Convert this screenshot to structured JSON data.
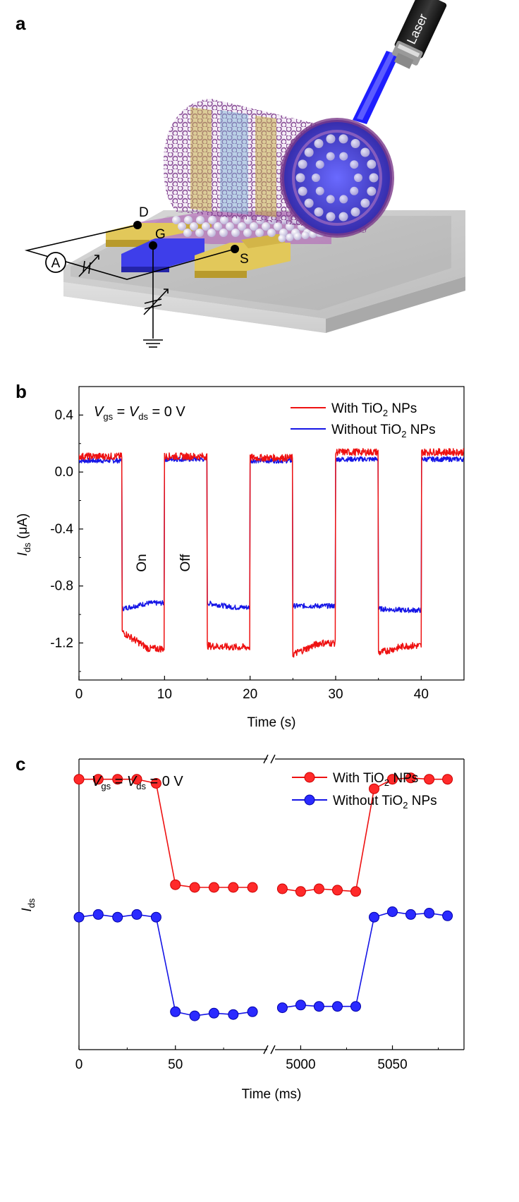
{
  "panels": {
    "a": "a",
    "b": "b",
    "c": "c"
  },
  "diagram": {
    "laser_label": "Laser",
    "drain_label": "D",
    "gate_label": "G",
    "source_label": "S",
    "ammeter_label": "A"
  },
  "colors": {
    "with_tio2": "#ee1111",
    "without_tio2": "#1515e6",
    "with_tio2_marker": "#ff2a2a",
    "without_tio2_marker": "#2a2aff",
    "gold": "#d4b83c",
    "gate_blue": "#3a3ae0",
    "laser_beam": "#2424ff",
    "tube_purple": "#8a3a96"
  },
  "chart_data": [
    {
      "panel": "b",
      "type": "line",
      "annotation": "V_gs = V_ds = 0 V",
      "xlabel": "Time (s)",
      "ylabel": "I_ds (μA)",
      "xlim": [
        0,
        45
      ],
      "ylim": [
        -1.46,
        0.6
      ],
      "x_ticks": [
        0,
        10,
        20,
        30,
        40
      ],
      "y_ticks": [
        0.4,
        0.0,
        -0.4,
        -0.8,
        -1.2
      ],
      "y_tick_labels": [
        "0.4",
        "0.0",
        "-0.4",
        "-0.8",
        "-1.2"
      ],
      "state_labels": [
        "On",
        "Off"
      ],
      "legend_position": "top-right",
      "switch_times_s": [
        5,
        10,
        15,
        20,
        25,
        30,
        35,
        40
      ],
      "series": [
        {
          "name": "With TiO2 NPs",
          "color": "#ee1111",
          "off_level": [
            0.11,
            0.11,
            0.1,
            0.14,
            0.14
          ],
          "on_start": [
            -1.12,
            -1.22,
            -1.28,
            -1.27
          ],
          "on_end": [
            -1.24,
            -1.23,
            -1.2,
            -1.22
          ]
        },
        {
          "name": "Without TiO2 NPs",
          "color": "#1515e6",
          "off_level": [
            0.08,
            0.09,
            0.08,
            0.09,
            0.09
          ],
          "on_start": [
            -0.96,
            -0.92,
            -0.94,
            -0.96
          ],
          "on_end": [
            -0.92,
            -0.95,
            -0.94,
            -0.97
          ]
        }
      ]
    },
    {
      "panel": "c",
      "type": "line",
      "annotation": "V_gs = V_ds = 0 V",
      "xlabel": "Time (ms)",
      "ylabel": "I_ds",
      "axis_break": "//",
      "x_tick_labels": [
        "0",
        "50",
        "5000",
        "5050"
      ],
      "legend_position": "top-right",
      "series": [
        {
          "name": "With TiO2 NPs",
          "color": "#ee1111",
          "segment_1": {
            "x": [
              0,
              10,
              20,
              30,
              40,
              50,
              60,
              70,
              80,
              90
            ],
            "y": [
              1.0,
              1.0,
              1.0,
              1.0,
              0.97,
              0.22,
              0.2,
              0.2,
              0.2,
              0.2
            ]
          },
          "segment_2": {
            "x": [
              4990,
              5000,
              5010,
              5020,
              5030,
              5040,
              5050,
              5060,
              5070,
              5080
            ],
            "y": [
              0.19,
              0.17,
              0.19,
              0.18,
              0.17,
              0.93,
              1.0,
              1.01,
              1.0,
              1.0
            ]
          }
        },
        {
          "name": "Without TiO2 NPs",
          "color": "#1515e6",
          "segment_1": {
            "x": [
              0,
              10,
              20,
              30,
              40,
              50,
              60,
              70,
              80,
              90
            ],
            "y": [
              -0.02,
              0.0,
              -0.02,
              0.0,
              -0.02,
              -0.72,
              -0.75,
              -0.73,
              -0.74,
              -0.72
            ]
          },
          "segment_2": {
            "x": [
              4990,
              5000,
              5010,
              5020,
              5030,
              5040,
              5050,
              5060,
              5070,
              5080
            ],
            "y": [
              -0.69,
              -0.67,
              -0.68,
              -0.68,
              -0.68,
              -0.02,
              0.02,
              0.0,
              0.01,
              -0.01
            ]
          }
        }
      ]
    }
  ]
}
